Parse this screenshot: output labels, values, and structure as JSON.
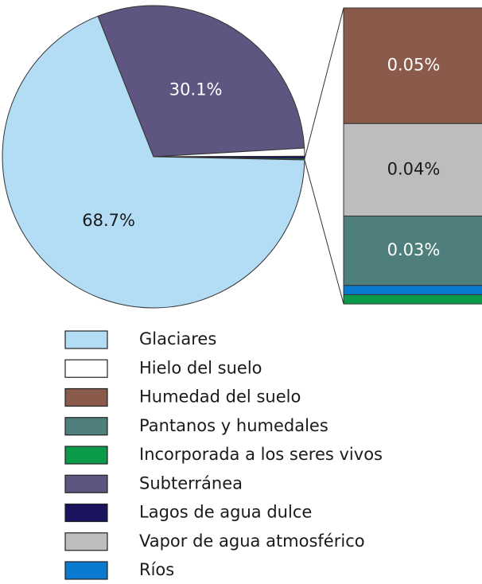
{
  "chart_data": {
    "type": "pie",
    "pie": {
      "categories": [
        "Subterránea",
        "Hielo del suelo",
        "Lagos de agua dulce",
        "Glaciares"
      ],
      "values": [
        30.1,
        0.86,
        0.26,
        68.7
      ],
      "value_labels": [
        "30.1%",
        null,
        null,
        "68.7%"
      ],
      "colors": [
        "#5e5580",
        "#ffffff",
        "#1a1460",
        "#b3dcf5"
      ]
    },
    "bar": {
      "categories": [
        "Humedad del suelo",
        "Vapor de agua atmosférico",
        "Pantanos y humedales",
        "Ríos",
        "Incorporada a los seres vivos"
      ],
      "values": [
        0.05,
        0.04,
        0.03,
        0.004,
        0.004
      ],
      "value_labels": [
        "0.05%",
        "0.04%",
        "0.03%",
        null,
        null
      ],
      "colors": [
        "#8a5a4a",
        "#bdbdbd",
        "#4f7f7c",
        "#0a7ad0",
        "#0a9a4a"
      ]
    }
  }
}
